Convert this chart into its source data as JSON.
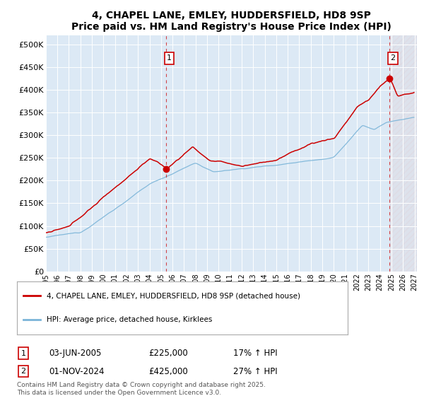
{
  "title": "4, CHAPEL LANE, EMLEY, HUDDERSFIELD, HD8 9SP",
  "subtitle": "Price paid vs. HM Land Registry's House Price Index (HPI)",
  "ylim": [
    0,
    520000
  ],
  "yticks": [
    0,
    50000,
    100000,
    150000,
    200000,
    250000,
    300000,
    350000,
    400000,
    450000,
    500000
  ],
  "plot_bg_color": "#dce9f5",
  "line1_color": "#cc0000",
  "line2_color": "#7ab4d8",
  "purchase1_x": 2005.42,
  "purchase1_y": 225000,
  "purchase2_x": 2024.83,
  "purchase2_y": 425000,
  "legend_label1": "4, CHAPEL LANE, EMLEY, HUDDERSFIELD, HD8 9SP (detached house)",
  "legend_label2": "HPI: Average price, detached house, Kirklees",
  "footnote_label1": "03-JUN-2005",
  "footnote_price1": "£225,000",
  "footnote_hpi1": "17% ↑ HPI",
  "footnote_label2": "01-NOV-2024",
  "footnote_price2": "£425,000",
  "footnote_hpi2": "27% ↑ HPI",
  "copyright": "Contains HM Land Registry data © Crown copyright and database right 2025.\nThis data is licensed under the Open Government Licence v3.0.",
  "xmin": 1995,
  "xmax": 2027.2
}
